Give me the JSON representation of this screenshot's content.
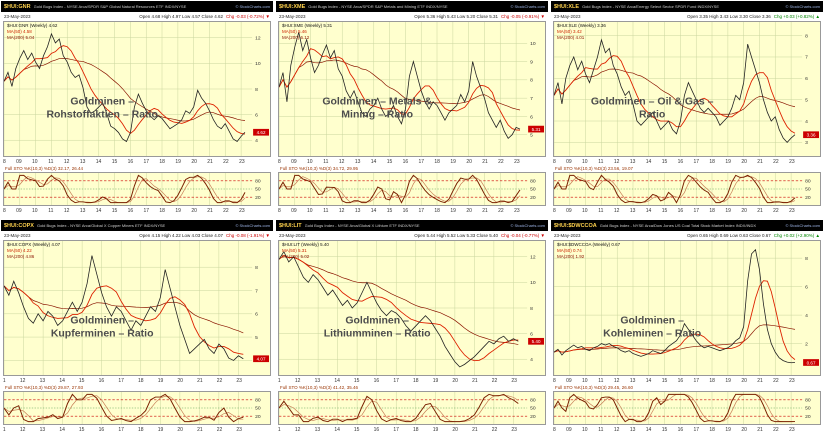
{
  "charts": [
    {
      "symbol": "$HUI:GNR",
      "description": "Gold Bugs Index - NYSE Arca/SPDR S&P Global Natural Resources ETF INDX/NYSE",
      "copyright": "© StockCharts.com",
      "date": "23-May-2023",
      "ohlc": {
        "text": "Open 4.68 High 4.97 Low 4.57 Close 4.62",
        "chg": "Chg -0.03 (-0.72%) ▼",
        "dir": "down"
      },
      "legend": {
        "series": "$HUI:GNR (Weekly) 4.62",
        "ma1": "MA(50) 4.58",
        "ma2": "MA(200) 5.04"
      },
      "annotation": [
        "Goldminen –",
        "Rohstoffaktien – Ratio"
      ],
      "sto_label": "Full STO %K(10,3) %D(3) 32.17, 26.44",
      "close_tag": "4.62"
    },
    {
      "symbol": "$HUI:XME",
      "description": "Gold Bugs Index - NYSE Arca/SPDR S&P Metals and Mining ETF INDX/NYSE",
      "copyright": "© StockCharts.com",
      "date": "23-May-2023",
      "ohlc": {
        "text": "Open 5.36 High 5.43 Low 5.20 Close 5.31",
        "chg": "Chg -0.05 (-0.91%) ▼",
        "dir": "down"
      },
      "legend": {
        "series": "$HUI:XME (Weekly) 5.31",
        "ma1": "MA(50) 5.46",
        "ma2": "MA(200) 6.12"
      },
      "annotation": [
        "Goldminen – Metals &",
        "Mining – Ratio"
      ],
      "sto_label": "Full STO %K(10,3) %D(3) 34.72, 29.95",
      "close_tag": "5.31"
    },
    {
      "symbol": "$HUI:XLE",
      "description": "Gold Bugs Index - NYSE Arca/Energy Select Sector SPDR Fund INDX/NYSE",
      "copyright": "© StockCharts.com",
      "date": "23-May-2023",
      "ohlc": {
        "text": "Open 3.35 High 3.43 Low 3.30 Close 3.36",
        "chg": "Chg +0.03 (+0.82%) ▲",
        "dir": "up"
      },
      "legend": {
        "series": "$HUI:XLE (Weekly) 3.36",
        "ma1": "MA(50) 3.42",
        "ma2": "MA(200) 4.01"
      },
      "annotation": [
        "Goldminen – Oil & Gas –",
        "Ratio"
      ],
      "sto_label": "Full STO %K(10,3) %D(3) 23.56, 19.07",
      "close_tag": "3.36"
    },
    {
      "symbol": "$HUI:COPX",
      "description": "Gold Bugs Index - NYSE Arca/Global X Copper Miners ETF INDX/NYSE",
      "copyright": "© StockCharts.com",
      "date": "23-May-2023",
      "ohlc": {
        "text": "Open 4.15 High 4.22 Low 4.03 Close 4.07",
        "chg": "Chg -0.08 (-1.91%) ▼",
        "dir": "down"
      },
      "legend": {
        "series": "$HUI:COPX (Weekly) 4.07",
        "ma1": "MA(50) 4.22",
        "ma2": "MA(200) 4.86"
      },
      "annotation": [
        "Goldminen –",
        "Kupferminen – Ratio"
      ],
      "sto_label": "Full STO %K(10,3) %D(3) 29.87, 27.93",
      "close_tag": "4.07"
    },
    {
      "symbol": "$HUI:LIT",
      "description": "Gold Bugs Index - NYSE Arca/Global X Lithium ETF INDX/NYSE",
      "copyright": "© StockCharts.com",
      "date": "23-May-2023",
      "ohlc": {
        "text": "Open 5.44 High 5.52 Low 5.33 Close 5.40",
        "chg": "Chg -0.04 (-0.77%) ▼",
        "dir": "down"
      },
      "legend": {
        "series": "$HUI:LIT (Weekly) 5.40",
        "ma1": "MA(50) 5.31",
        "ma2": "MA(200) 5.02"
      },
      "annotation": [
        "Goldminen –",
        "Lithiumminen – Ratio"
      ],
      "sto_label": "Full STO %K(10,3) %D(3) 41.42, 35.46",
      "close_tag": "5.40"
    },
    {
      "symbol": "$HUI:$DWCCOA",
      "description": "Gold Bugs Index - NYSE Arca/Dow Jones US Coal Total Stock Market Index INDX/INDX",
      "copyright": "© StockCharts.com",
      "date": "23-May-2023",
      "ohlc": {
        "text": "Open 0.65 High 0.69 Low 0.63 Close 0.67",
        "chg": "Chg +0.02 (+2.90%) ▲",
        "dir": "up"
      },
      "legend": {
        "series": "$HUI:$DWCCOA (Weekly) 0.67",
        "ma1": "MA(50) 0.74",
        "ma2": "MA(200) 1.92"
      },
      "annotation": [
        "Goldminen –",
        "Kohleminen – Ratio"
      ],
      "sto_label": "Full STO %K(10,3) %D(3) 29.45, 26.60",
      "close_tag": "0.67"
    }
  ],
  "chart_data": [
    {
      "type": "line",
      "title": "Goldminen – Rohstoffaktien – Ratio ($HUI:GNR weekly)",
      "x_domain": [
        2008,
        2023.7
      ],
      "x_first": 2008,
      "x_step": 0.25,
      "xtick_year_start": 2008,
      "xtick_labels": [
        "08",
        "09",
        "10",
        "11",
        "12",
        "13",
        "14",
        "15",
        "16",
        "17",
        "18",
        "19",
        "20",
        "21",
        "22",
        "23"
      ],
      "ylim": [
        3,
        13
      ],
      "yticks": [
        4,
        6,
        8,
        10,
        12
      ],
      "values": [
        8.6,
        9.3,
        8.2,
        9.6,
        10.4,
        11.0,
        10.3,
        10.8,
        10.1,
        9.6,
        10.6,
        11.3,
        12.3,
        11.6,
        11.9,
        10.6,
        10.1,
        9.3,
        8.9,
        9.1,
        8.1,
        6.6,
        6.1,
        6.3,
        6.6,
        6.9,
        6.1,
        5.1,
        4.9,
        4.6,
        4.1,
        3.9,
        4.6,
        6.6,
        7.6,
        6.9,
        6.3,
        5.9,
        5.6,
        5.9,
        5.7,
        5.3,
        4.9,
        5.1,
        5.3,
        5.6,
        6.3,
        6.1,
        6.6,
        7.9,
        7.3,
        6.9,
        6.3,
        5.6,
        5.1,
        4.9,
        5.3,
        4.7,
        4.1,
        3.9,
        4.3,
        4.62
      ],
      "sto_levels": [
        80,
        50,
        20
      ]
    },
    {
      "type": "line",
      "title": "Goldminen – Metals & Mining – Ratio ($HUI:XME weekly)",
      "x_domain": [
        2008,
        2023.7
      ],
      "x_first": 2008,
      "x_step": 0.25,
      "xtick_year_start": 2008,
      "xtick_labels": [
        "08",
        "09",
        "10",
        "11",
        "12",
        "13",
        "14",
        "15",
        "16",
        "17",
        "18",
        "19",
        "20",
        "21",
        "22",
        "23"
      ],
      "ylim": [
        4,
        11
      ],
      "yticks": [
        5,
        6,
        7,
        8,
        9,
        10
      ],
      "values": [
        7.6,
        8.4,
        6.8,
        8.8,
        9.8,
        10.6,
        9.6,
        10.2,
        9.2,
        8.4,
        8.8,
        9.4,
        9.9,
        9.2,
        9.6,
        8.6,
        8.2,
        7.4,
        7.0,
        7.4,
        6.8,
        6.2,
        6.0,
        6.4,
        6.6,
        7.0,
        6.4,
        6.0,
        6.2,
        6.6,
        6.0,
        5.6,
        6.4,
        8.2,
        9.0,
        8.2,
        7.4,
        6.8,
        6.4,
        6.8,
        6.6,
        6.2,
        5.8,
        6.2,
        6.4,
        6.6,
        7.2,
        6.8,
        7.4,
        9.0,
        8.2,
        7.6,
        7.0,
        6.2,
        5.8,
        5.4,
        5.8,
        5.2,
        4.8,
        5.0,
        5.4,
        5.31
      ],
      "sto_levels": [
        80,
        50,
        20
      ]
    },
    {
      "type": "line",
      "title": "Goldminen – Oil & Gas – Ratio ($HUI:XLE weekly)",
      "x_domain": [
        2008,
        2023.7
      ],
      "x_first": 2008,
      "x_step": 0.25,
      "xtick_year_start": 2008,
      "xtick_labels": [
        "08",
        "09",
        "10",
        "11",
        "12",
        "13",
        "14",
        "15",
        "16",
        "17",
        "18",
        "19",
        "20",
        "21",
        "22",
        "23"
      ],
      "ylim": [
        2.5,
        8.5
      ],
      "yticks": [
        3,
        4,
        5,
        6,
        7,
        8
      ],
      "values": [
        5.2,
        5.8,
        4.8,
        6.0,
        6.6,
        7.0,
        6.4,
        6.8,
        6.2,
        5.8,
        6.4,
        7.0,
        7.8,
        7.2,
        7.4,
        6.6,
        6.2,
        5.6,
        5.2,
        5.4,
        4.8,
        4.0,
        3.8,
        4.0,
        4.2,
        4.4,
        4.0,
        3.6,
        3.8,
        4.0,
        3.6,
        3.4,
        4.0,
        5.2,
        5.8,
        5.4,
        5.0,
        4.6,
        4.4,
        4.6,
        4.4,
        4.2,
        3.8,
        4.0,
        4.2,
        4.6,
        5.2,
        5.0,
        5.8,
        7.6,
        7.0,
        6.4,
        5.8,
        5.0,
        4.4,
        4.0,
        4.2,
        3.6,
        3.2,
        3.0,
        3.2,
        3.36
      ],
      "sto_levels": [
        80,
        50,
        20
      ]
    },
    {
      "type": "line",
      "title": "Goldminen – Kupferminen – Ratio ($HUI:COPX weekly)",
      "x_domain": [
        2011,
        2023.7
      ],
      "x_first": 2011,
      "x_step": 0.25,
      "xtick_year_start": 2011,
      "xtick_labels": [
        "11",
        "12",
        "13",
        "14",
        "15",
        "16",
        "17",
        "18",
        "19",
        "20",
        "21",
        "22",
        "23"
      ],
      "ylim": [
        3.5,
        9
      ],
      "yticks": [
        4,
        5,
        6,
        7,
        8
      ],
      "values": [
        7.2,
        6.8,
        7.4,
        6.9,
        6.3,
        5.8,
        5.6,
        6.0,
        5.7,
        6.1,
        5.9,
        5.5,
        5.7,
        6.1,
        6.5,
        6.1,
        6.5,
        7.3,
        8.5,
        7.7,
        6.9,
        6.3,
        5.9,
        6.3,
        6.1,
        5.7,
        5.3,
        5.7,
        5.5,
        5.9,
        6.3,
        6.1,
        6.7,
        7.9,
        7.1,
        6.3,
        5.5,
        4.9,
        4.3,
        4.5,
        4.7,
        4.9,
        4.5,
        4.3,
        4.7,
        4.5,
        4.1,
        4.0,
        4.2,
        4.07
      ],
      "sto_levels": [
        80,
        50,
        20
      ]
    },
    {
      "type": "line",
      "title": "Goldminen – Lithiumminen – Ratio ($HUI:LIT weekly)",
      "x_domain": [
        2011,
        2023.7
      ],
      "x_first": 2011,
      "x_step": 0.25,
      "xtick_year_start": 2011,
      "xtick_labels": [
        "11",
        "12",
        "13",
        "14",
        "15",
        "16",
        "17",
        "18",
        "19",
        "20",
        "21",
        "22",
        "23"
      ],
      "ylim": [
        3,
        13
      ],
      "yticks": [
        4,
        6,
        8,
        10,
        12
      ],
      "values": [
        11.8,
        12.4,
        11.6,
        12.0,
        11.2,
        10.4,
        10.0,
        10.6,
        10.2,
        9.6,
        9.0,
        9.4,
        8.8,
        8.2,
        8.6,
        8.0,
        8.4,
        9.2,
        10.0,
        9.2,
        8.4,
        7.8,
        7.4,
        7.8,
        7.6,
        7.2,
        6.6,
        6.2,
        6.6,
        7.0,
        7.4,
        7.0,
        6.4,
        5.8,
        5.0,
        4.4,
        3.8,
        3.4,
        3.6,
        3.9,
        4.2,
        4.6,
        5.0,
        5.4,
        5.2,
        5.6,
        5.8,
        5.4,
        5.6,
        5.4
      ],
      "sto_levels": [
        80,
        50,
        20
      ]
    },
    {
      "type": "line",
      "title": "Goldminen – Kohleminen – Ratio ($HUI:$DWCCOA weekly)",
      "x_domain": [
        2008,
        2023.7
      ],
      "x_first": 2008,
      "x_step": 0.25,
      "xtick_year_start": 2008,
      "xtick_labels": [
        "08",
        "09",
        "10",
        "11",
        "12",
        "13",
        "14",
        "15",
        "16",
        "17",
        "18",
        "19",
        "20",
        "21",
        "22",
        "23"
      ],
      "ylim": [
        0,
        9
      ],
      "yticks": [
        2,
        4,
        6,
        8
      ],
      "values": [
        1.4,
        1.6,
        1.2,
        1.5,
        1.7,
        1.9,
        1.7,
        1.8,
        1.6,
        1.5,
        1.7,
        1.8,
        2.0,
        1.9,
        2.0,
        1.8,
        1.7,
        1.5,
        1.4,
        1.5,
        1.3,
        1.2,
        1.1,
        1.2,
        1.3,
        1.5,
        1.4,
        1.3,
        1.5,
        1.8,
        2.0,
        2.2,
        2.6,
        3.4,
        3.0,
        2.6,
        2.2,
        1.9,
        1.7,
        1.8,
        1.7,
        1.6,
        1.5,
        1.6,
        1.7,
        1.9,
        2.2,
        2.4,
        3.2,
        6.4,
        8.3,
        8.6,
        7.2,
        4.8,
        3.0,
        2.0,
        1.4,
        1.0,
        0.8,
        0.7,
        0.65,
        0.67
      ],
      "sto_levels": [
        80,
        50,
        20
      ]
    }
  ]
}
